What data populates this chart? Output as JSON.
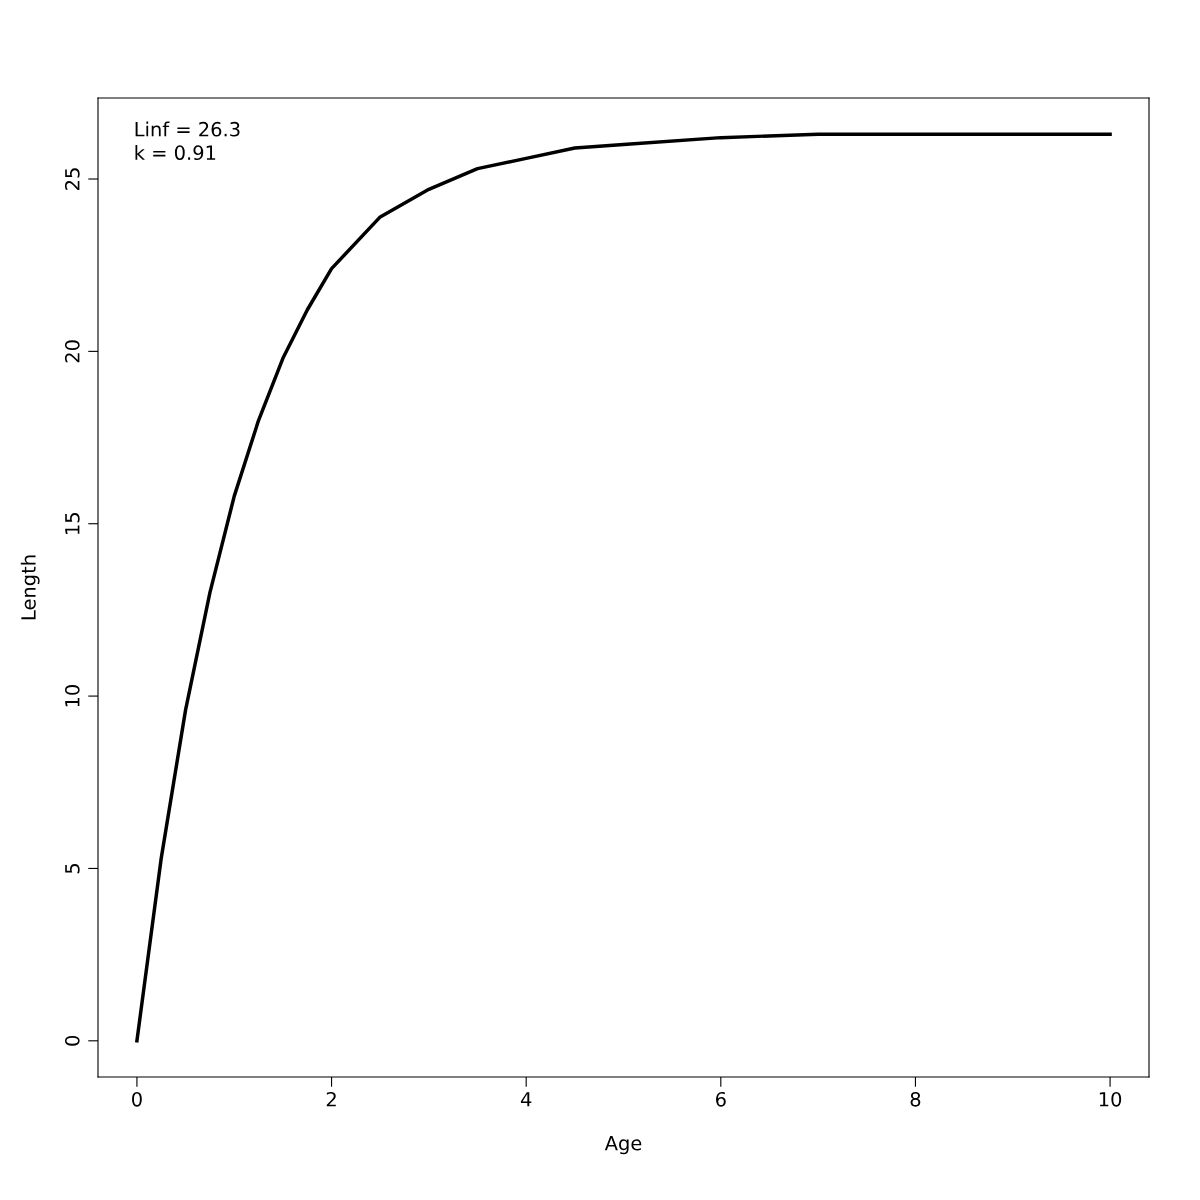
{
  "chart_data": {
    "type": "line",
    "xlabel": "Age",
    "ylabel": "Length",
    "annotations": [
      "Linf = 26.3",
      "k = 0.91"
    ],
    "x": [
      0,
      0.25,
      0.5,
      0.75,
      1,
      1.25,
      1.5,
      1.75,
      2,
      2.5,
      3,
      3.5,
      4,
      4.5,
      5,
      6,
      7,
      8,
      9,
      10
    ],
    "series": [
      {
        "color": "#000000",
        "values": [
          0,
          5.3,
          9.6,
          13.0,
          15.8,
          18.0,
          19.8,
          21.2,
          22.4,
          23.9,
          24.7,
          25.3,
          25.6,
          25.9,
          26.0,
          26.2,
          26.3,
          26.3,
          26.3,
          26.3
        ]
      }
    ],
    "xlim": [
      -0.4,
      10.4
    ],
    "ylim": [
      -1.05,
      27.35
    ],
    "xticks": [
      0,
      2,
      4,
      6,
      8,
      10
    ],
    "yticks": [
      0,
      5,
      10,
      15,
      20,
      25
    ],
    "marker": "none",
    "line_style": "solid"
  }
}
